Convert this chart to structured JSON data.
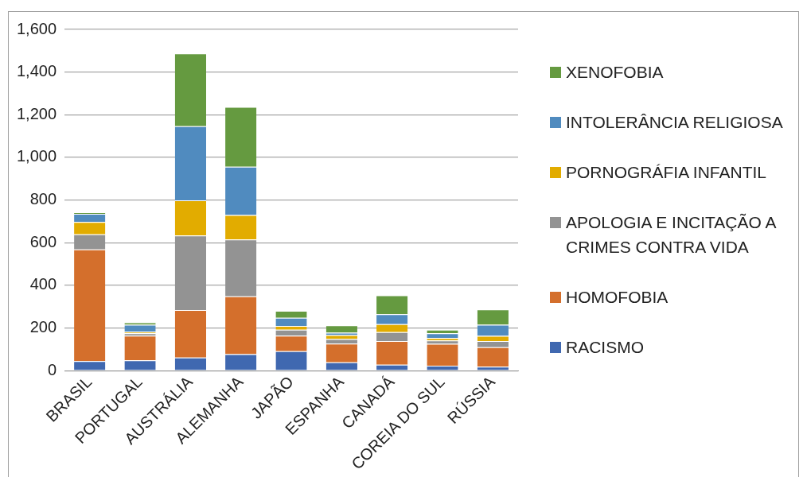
{
  "chart_data": {
    "type": "bar",
    "stacked": true,
    "categories": [
      "BRASIL",
      "PORTUGAL",
      "AUSTRÁLIA",
      "ALEMANHA",
      "JAPÃO",
      "ESPANHA",
      "CANADÁ",
      "COREIA DO SUL",
      "RÚSSIA"
    ],
    "series": [
      {
        "name": "RACISMO",
        "color": "#4068b0",
        "values": [
          45,
          48,
          61,
          77,
          91,
          39,
          28,
          23,
          19
        ]
      },
      {
        "name": "HOMOFOBIA",
        "color": "#d46f2c",
        "values": [
          523,
          116,
          223,
          271,
          73,
          88,
          111,
          103,
          91
        ]
      },
      {
        "name": "APOLOGIA E INCITAÇÃO A CRIMES CONTRA VIDA",
        "color": "#939393",
        "values": [
          71,
          11,
          350,
          267,
          28,
          21,
          42,
          16,
          29
        ]
      },
      {
        "name": "PORNOGRÁFIA INFANTIL",
        "color": "#e2ac00",
        "values": [
          58,
          8,
          165,
          115,
          18,
          19,
          37,
          11,
          24
        ]
      },
      {
        "name": "INTOLERÂNCIA RELIGIOSA",
        "color": "#508bbf",
        "values": [
          38,
          32,
          347,
          226,
          38,
          11,
          47,
          22,
          52
        ]
      },
      {
        "name": "XENOFOBIA",
        "color": "#659a40",
        "values": [
          8,
          11,
          341,
          281,
          32,
          34,
          88,
          17,
          72
        ]
      }
    ],
    "ylim": [
      0,
      1600
    ],
    "yticks": [
      0,
      200,
      400,
      600,
      800,
      {
        "value": 1000,
        "label": "1,000"
      },
      {
        "value": 1200,
        "label": "1,200"
      },
      {
        "value": 1400,
        "label": "1,400"
      },
      {
        "value": 1600,
        "label": "1,600"
      }
    ],
    "grid": "y",
    "legend": "right"
  }
}
